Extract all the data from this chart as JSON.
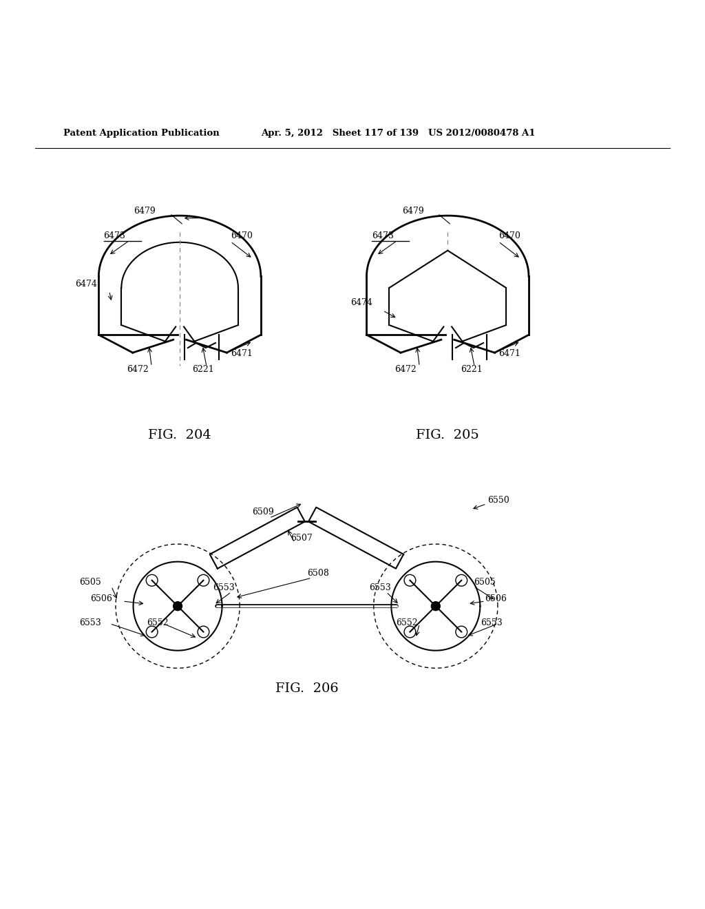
{
  "header_left": "Patent Application Publication",
  "header_mid": "Apr. 5, 2012   Sheet 117 of 139   US 2012/0080478 A1",
  "fig204_label": "FIG.  204",
  "fig205_label": "FIG.  205",
  "fig206_label": "FIG.  206",
  "background": "#ffffff",
  "line_color": "#000000",
  "dashed_color": "#888888",
  "lw": 1.5,
  "lw_thick": 2.0
}
